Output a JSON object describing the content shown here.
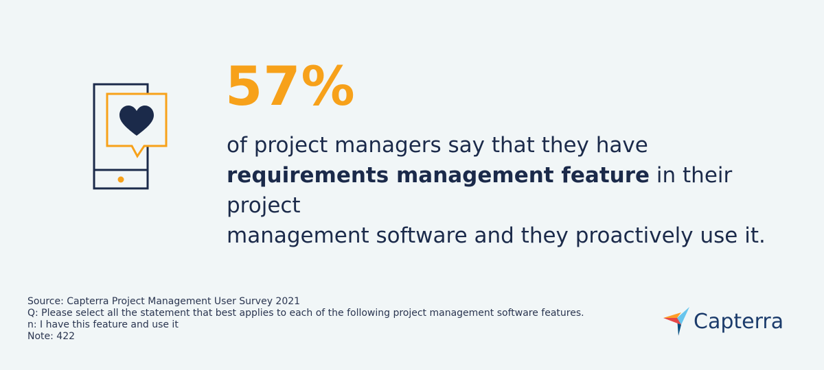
{
  "stat": {
    "value": "57%"
  },
  "statement": {
    "parts": [
      "of project managers say that they have",
      "requirements management feature",
      "in their project",
      "management software and they proactively use it."
    ]
  },
  "footnotes": [
    "Source: Capterra Project Management User Survey 2021",
    "Q: Please select all the statement that best applies to each of the following project management software features.",
    "n: I have this feature and use it",
    "Note: 422"
  ],
  "logo": {
    "text": "Capterra"
  }
}
